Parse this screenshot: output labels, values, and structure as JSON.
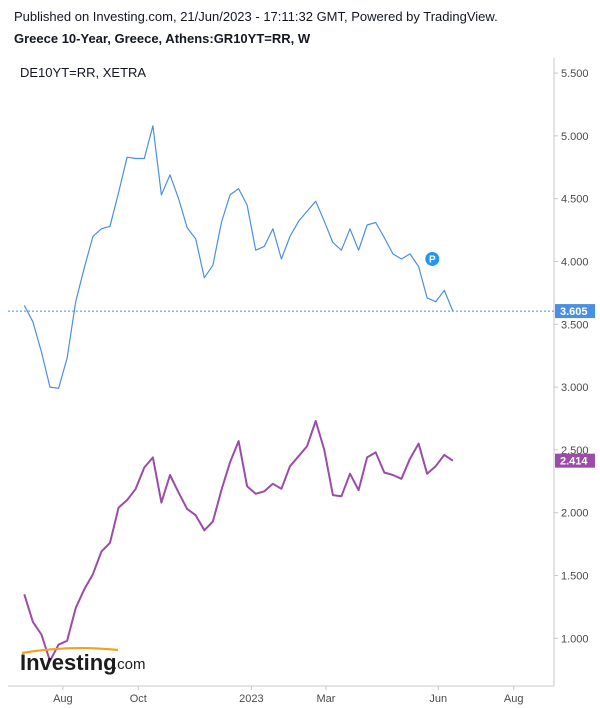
{
  "header": {
    "published": "Published on Investing.com, 21/Jun/2023 - 17:11:32 GMT, Powered by TradingView.",
    "symbol_title": "Greece 10-Year, Greece, Athens:GR10YT=RR, W"
  },
  "logo": {
    "name": "Investing",
    "suffix": ".com"
  },
  "chart_data": {
    "type": "line",
    "legend": "DE10YT=RR, XETRA",
    "x_start": "2023-07-09",
    "ylim": [
      0.62,
      5.62
    ],
    "yticks": [
      "5.500",
      "5.000",
      "4.500",
      "4.000",
      "3.500",
      "3.000",
      "2.500",
      "2.000",
      "1.500",
      "1.000"
    ],
    "ytick_values": [
      5.5,
      5.0,
      4.5,
      4.0,
      3.5,
      3.0,
      2.5,
      2.0,
      1.5,
      1.0
    ],
    "xticks": [
      {
        "label": "Aug",
        "week": 4.5
      },
      {
        "label": "Oct",
        "week": 13.3
      },
      {
        "label": "2023",
        "week": 26.5
      },
      {
        "label": "Mar",
        "week": 35.2
      },
      {
        "label": "Jun",
        "week": 48.3
      },
      {
        "label": "Aug",
        "week": 57.1
      }
    ],
    "week_range": [
      -1.9,
      61.8
    ],
    "series": [
      {
        "name": "Greece 10-Year",
        "color": "#4a90e2",
        "last_value": "3.605",
        "values": [
          3.65,
          3.52,
          3.28,
          3.0,
          2.99,
          3.23,
          3.68,
          3.95,
          4.2,
          4.26,
          4.28,
          4.55,
          4.83,
          4.82,
          4.82,
          5.08,
          4.53,
          4.69,
          4.5,
          4.27,
          4.18,
          3.87,
          3.97,
          4.31,
          4.53,
          4.58,
          4.45,
          4.09,
          4.12,
          4.26,
          4.02,
          4.2,
          4.32,
          4.4,
          4.48,
          4.32,
          4.15,
          4.09,
          4.26,
          4.09,
          4.29,
          4.31,
          4.19,
          4.06,
          4.02,
          4.06,
          3.96,
          3.71,
          3.68,
          3.77,
          3.605
        ]
      },
      {
        "name": "DE10YT=RR, XETRA",
        "color": "#9b4ca8",
        "last_value": "2.414",
        "values": [
          1.35,
          1.13,
          1.03,
          0.82,
          0.95,
          0.98,
          1.24,
          1.39,
          1.51,
          1.69,
          1.76,
          2.04,
          2.1,
          2.19,
          2.36,
          2.44,
          2.08,
          2.3,
          2.16,
          2.03,
          1.98,
          1.86,
          1.93,
          2.18,
          2.4,
          2.57,
          2.21,
          2.15,
          2.17,
          2.23,
          2.19,
          2.37,
          2.45,
          2.53,
          2.73,
          2.5,
          2.14,
          2.13,
          2.31,
          2.18,
          2.44,
          2.48,
          2.32,
          2.3,
          2.27,
          2.43,
          2.55,
          2.31,
          2.37,
          2.46,
          2.414
        ]
      }
    ],
    "markers": [
      {
        "label": "P",
        "week": 47.6,
        "value": 4.02,
        "color": "#2196f3"
      }
    ]
  }
}
